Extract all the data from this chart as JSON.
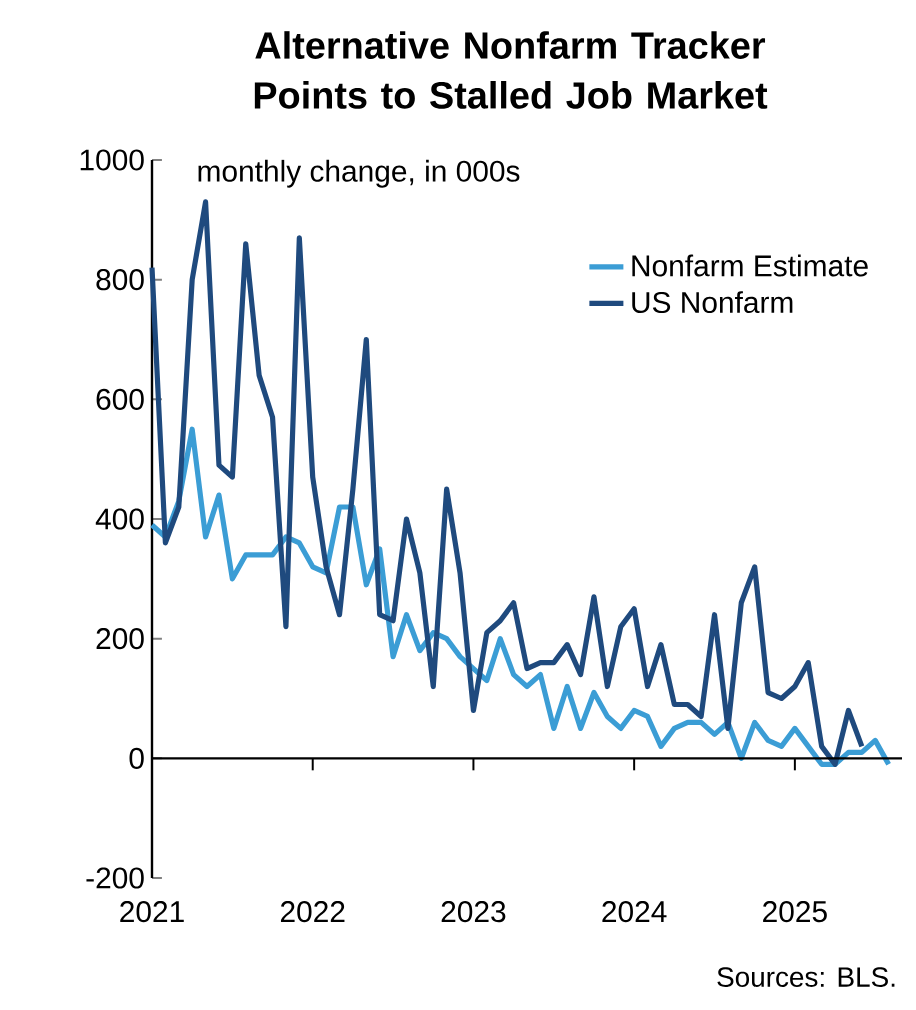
{
  "chart_data": {
    "type": "line",
    "title": "Alternative Nonfarm Tracker Points to Stalled Job Market",
    "ylabel": "monthly change, in 000s",
    "annotations": [
      "Sources: BLS."
    ],
    "xlim": [
      "2021-01",
      "2025-09"
    ],
    "xticks": [
      "2021",
      "2022",
      "2023",
      "2024",
      "2025"
    ],
    "ylim": [
      -200,
      1000
    ],
    "yticks": [
      -200,
      0,
      200,
      400,
      600,
      800,
      1000
    ],
    "legend": "top right",
    "marker": "none",
    "line_style": "solid",
    "series": [
      {
        "name": "Nonfarm Estimate",
        "color": "#3b9dd5",
        "x": [
          "2021-01",
          "2021-02",
          "2021-03",
          "2021-04",
          "2021-05",
          "2021-06",
          "2021-07",
          "2021-08",
          "2021-09",
          "2021-10",
          "2021-11",
          "2021-12",
          "2022-01",
          "2022-02",
          "2022-03",
          "2022-04",
          "2022-05",
          "2022-06",
          "2022-07",
          "2022-08",
          "2022-09",
          "2022-10",
          "2022-11",
          "2022-12",
          "2023-01",
          "2023-02",
          "2023-03",
          "2023-04",
          "2023-05",
          "2023-06",
          "2023-07",
          "2023-08",
          "2023-09",
          "2023-10",
          "2023-11",
          "2023-12",
          "2024-01",
          "2024-02",
          "2024-03",
          "2024-04",
          "2024-05",
          "2024-06",
          "2024-07",
          "2024-08",
          "2024-09",
          "2024-10",
          "2024-11",
          "2024-12",
          "2025-01",
          "2025-02",
          "2025-03",
          "2025-04",
          "2025-05",
          "2025-06",
          "2025-07",
          "2025-08"
        ],
        "values": [
          390,
          370,
          430,
          550,
          370,
          440,
          300,
          340,
          340,
          340,
          370,
          360,
          320,
          310,
          420,
          420,
          290,
          350,
          170,
          240,
          180,
          210,
          200,
          170,
          150,
          130,
          200,
          140,
          120,
          140,
          50,
          120,
          50,
          110,
          70,
          50,
          80,
          70,
          20,
          50,
          60,
          60,
          40,
          60,
          0,
          60,
          30,
          20,
          50,
          20,
          -10,
          -10,
          10,
          10,
          30,
          -10
        ]
      },
      {
        "name": "US Nonfarm",
        "color": "#1f4a7e",
        "x": [
          "2021-01",
          "2021-02",
          "2021-03",
          "2021-04",
          "2021-05",
          "2021-06",
          "2021-07",
          "2021-08",
          "2021-09",
          "2021-10",
          "2021-11",
          "2021-12",
          "2022-01",
          "2022-02",
          "2022-03",
          "2022-04",
          "2022-05",
          "2022-06",
          "2022-07",
          "2022-08",
          "2022-09",
          "2022-10",
          "2022-11",
          "2022-12",
          "2023-01",
          "2023-02",
          "2023-03",
          "2023-04",
          "2023-05",
          "2023-06",
          "2023-07",
          "2023-08",
          "2023-09",
          "2023-10",
          "2023-11",
          "2023-12",
          "2024-01",
          "2024-02",
          "2024-03",
          "2024-04",
          "2024-05",
          "2024-06",
          "2024-07",
          "2024-08",
          "2024-09",
          "2024-10",
          "2024-11",
          "2024-12",
          "2025-01",
          "2025-02",
          "2025-03",
          "2025-04",
          "2025-05",
          "2025-06"
        ],
        "values": [
          820,
          360,
          420,
          800,
          930,
          490,
          470,
          860,
          640,
          570,
          220,
          870,
          470,
          320,
          240,
          450,
          700,
          240,
          230,
          400,
          310,
          120,
          450,
          310,
          80,
          210,
          230,
          260,
          150,
          160,
          160,
          190,
          140,
          270,
          120,
          220,
          250,
          120,
          190,
          90,
          90,
          70,
          240,
          50,
          260,
          320,
          110,
          100,
          120,
          160,
          20,
          -10,
          80,
          20
        ]
      }
    ]
  }
}
